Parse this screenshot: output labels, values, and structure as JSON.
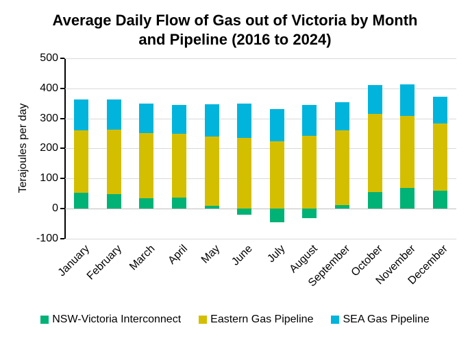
{
  "title": "Average Daily Flow of Gas out of Victoria by Month and Pipeline (2016 to 2024)",
  "chart_data": {
    "type": "bar",
    "stacked": true,
    "title": "Average Daily Flow of Gas out of Victoria by Month and Pipeline (2016 to 2024)",
    "xlabel": "",
    "ylabel": "Terajoules per day",
    "ylim": [
      -100,
      500
    ],
    "yticks": [
      500,
      400,
      300,
      200,
      100,
      0,
      -100
    ],
    "grid": true,
    "legend_position": "bottom",
    "categories": [
      "January",
      "February",
      "March",
      "April",
      "May",
      "June",
      "July",
      "August",
      "September",
      "October",
      "November",
      "December"
    ],
    "series": [
      {
        "name": "NSW-Victoria Interconnect",
        "color": "#00B276",
        "values": [
          52,
          47,
          33,
          36,
          8,
          -20,
          -47,
          -33,
          10,
          55,
          68,
          60
        ]
      },
      {
        "name": "Eastern Gas Pipeline",
        "color": "#D4BE00",
        "values": [
          208,
          215,
          217,
          212,
          232,
          234,
          224,
          242,
          251,
          261,
          239,
          222
        ]
      },
      {
        "name": "SEA Gas Pipeline",
        "color": "#00B4DC",
        "values": [
          102,
          102,
          99,
          96,
          107,
          116,
          108,
          103,
          93,
          96,
          106,
          91
        ]
      }
    ]
  },
  "colors": {
    "gridline": "#d9d9d9",
    "zero_line": "#bfbfbf",
    "axis": "#000000"
  }
}
